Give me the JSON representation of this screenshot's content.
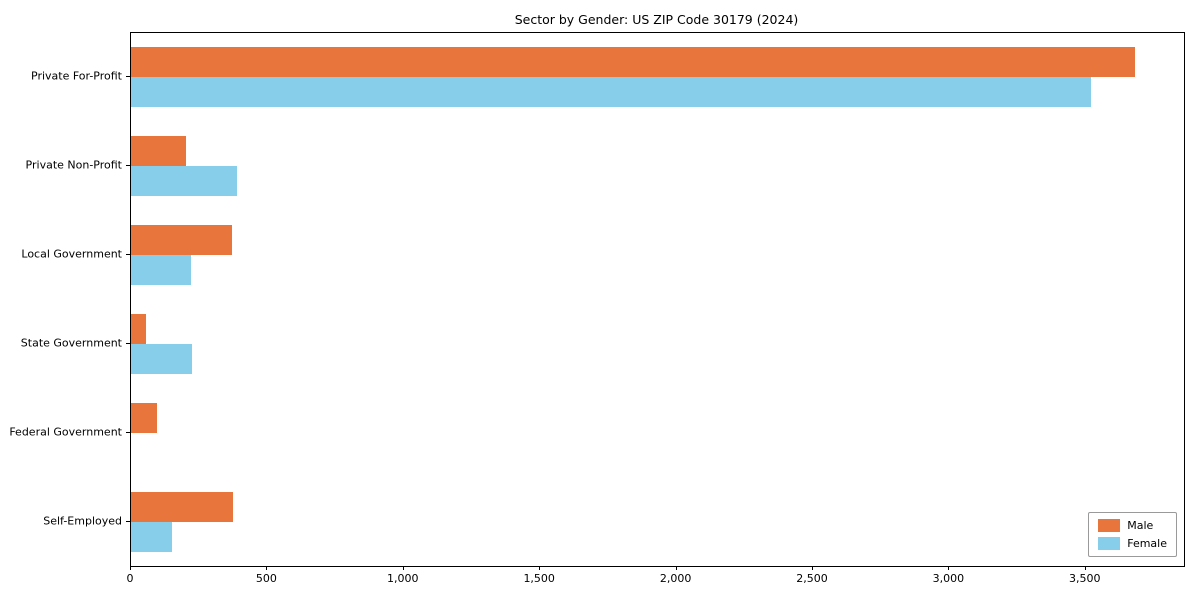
{
  "chart_data": {
    "type": "bar",
    "orientation": "horizontal",
    "title": "Sector by Gender: US ZIP Code 30179 (2024)",
    "categories": [
      "Private For-Profit",
      "Private Non-Profit",
      "Local Government",
      "State Government",
      "Federal Government",
      "Self-Employed"
    ],
    "series": [
      {
        "name": "Male",
        "color": "#e8763c",
        "values": [
          3680,
          200,
          370,
          55,
          95,
          375
        ]
      },
      {
        "name": "Female",
        "color": "#87ceeb",
        "values": [
          3520,
          390,
          220,
          225,
          0,
          150
        ]
      }
    ],
    "xlim": [
      0,
      3860
    ],
    "xticks": [
      0,
      500,
      1000,
      1500,
      2000,
      2500,
      3000,
      3500
    ],
    "xtick_labels": [
      "0",
      "500",
      "1,000",
      "1,500",
      "2,000",
      "2,500",
      "3,000",
      "3,500"
    ],
    "legend_position": "lower right",
    "grid": false,
    "axis_color": "#000000"
  }
}
